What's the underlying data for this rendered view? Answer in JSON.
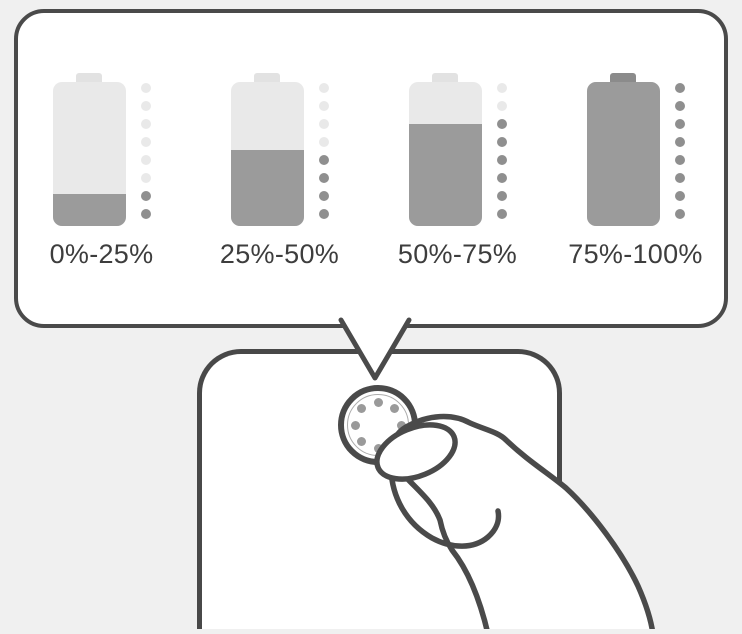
{
  "tooltip": {
    "description": "battery-charge-level-legend",
    "batteries": [
      {
        "label": "0%-25%",
        "fill_percent": 22,
        "lit_dots": 2,
        "total_dots": 8
      },
      {
        "label": "25%-50%",
        "fill_percent": 53,
        "lit_dots": 4,
        "total_dots": 8
      },
      {
        "label": "50%-75%",
        "fill_percent": 71,
        "lit_dots": 6,
        "total_dots": 8
      },
      {
        "label": "75%-100%",
        "fill_percent": 100,
        "lit_dots": 8,
        "total_dots": 8
      }
    ]
  },
  "device": {
    "button": {
      "led_count": 8
    }
  },
  "colors": {
    "background": "#f0f0f0",
    "outline": "#4a4a4a",
    "battery_body": "#e9e9e9",
    "battery_fill": "#9b9b9b",
    "battery_cap": "#e2e2e2",
    "battery_cap_full": "#8b8b8b",
    "dot_off": "#e9e9e9",
    "dot_on": "#8f8f8f",
    "led_dot": "#9a9a9a",
    "label_text": "#3d3d3d"
  }
}
